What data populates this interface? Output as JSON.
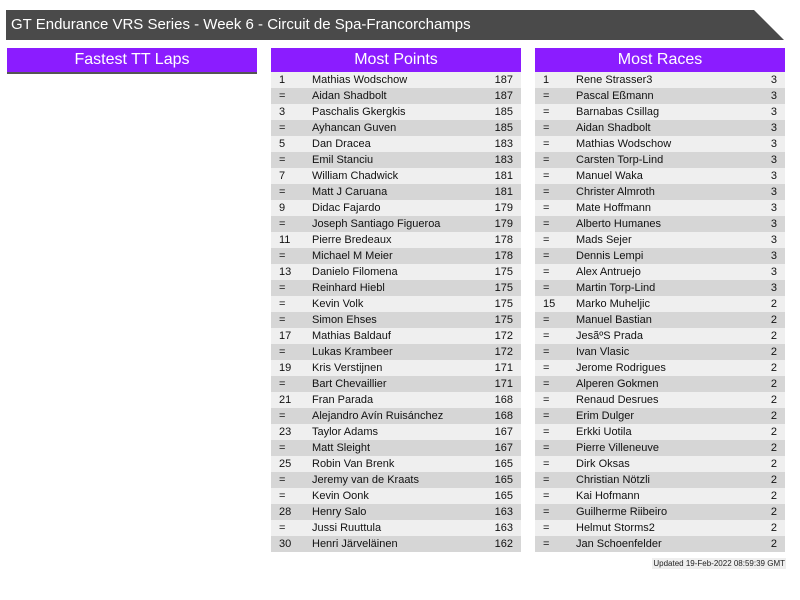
{
  "title": "GT Endurance VRS Series - Week 6 - Circuit de Spa-Francorchamps",
  "fastest_tt": {
    "header": "Fastest TT Laps",
    "rows": []
  },
  "most_points": {
    "header": "Most Points",
    "rows": [
      [
        "1",
        "Mathias Wodschow",
        "187"
      ],
      [
        "=",
        "Aidan Shadbolt",
        "187"
      ],
      [
        "3",
        "Paschalis Gkergkis",
        "185"
      ],
      [
        "=",
        "Ayhancan Guven",
        "185"
      ],
      [
        "5",
        "Dan Dracea",
        "183"
      ],
      [
        "=",
        "Emil Stanciu",
        "183"
      ],
      [
        "7",
        "William Chadwick",
        "181"
      ],
      [
        "=",
        "Matt J Caruana",
        "181"
      ],
      [
        "9",
        "Didac Fajardo",
        "179"
      ],
      [
        "=",
        "Joseph Santiago Figueroa",
        "179"
      ],
      [
        "11",
        "Pierre Bredeaux",
        "178"
      ],
      [
        "=",
        "Michael M Meier",
        "178"
      ],
      [
        "13",
        "Danielo Filomena",
        "175"
      ],
      [
        "=",
        "Reinhard Hiebl",
        "175"
      ],
      [
        "=",
        "Kevin Volk",
        "175"
      ],
      [
        "=",
        "Simon Ehses",
        "175"
      ],
      [
        "17",
        "Mathias Baldauf",
        "172"
      ],
      [
        "=",
        "Lukas Krambeer",
        "172"
      ],
      [
        "19",
        "Kris Verstijnen",
        "171"
      ],
      [
        "=",
        "Bart Chevaillier",
        "171"
      ],
      [
        "21",
        "Fran Parada",
        "168"
      ],
      [
        "=",
        "Alejandro Avín Ruisánchez",
        "168"
      ],
      [
        "23",
        "Taylor Adams",
        "167"
      ],
      [
        "=",
        "Matt Sleight",
        "167"
      ],
      [
        "25",
        "Robin Van Brenk",
        "165"
      ],
      [
        "=",
        "Jeremy van de Kraats",
        "165"
      ],
      [
        "=",
        "Kevin Oonk",
        "165"
      ],
      [
        "28",
        "Henry Salo",
        "163"
      ],
      [
        "=",
        "Jussi Ruuttula",
        "163"
      ],
      [
        "30",
        "Henri Järveläinen",
        "162"
      ]
    ]
  },
  "most_races": {
    "header": "Most Races",
    "rows": [
      [
        "1",
        "Rene Strasser3",
        "3"
      ],
      [
        "=",
        "Pascal Eßmann",
        "3"
      ],
      [
        "=",
        "Barnabas Csillag",
        "3"
      ],
      [
        "=",
        "Aidan Shadbolt",
        "3"
      ],
      [
        "=",
        "Mathias Wodschow",
        "3"
      ],
      [
        "=",
        "Carsten Torp-Lind",
        "3"
      ],
      [
        "=",
        "Manuel Waka",
        "3"
      ],
      [
        "=",
        "Christer Almroth",
        "3"
      ],
      [
        "=",
        "Mate Hoffmann",
        "3"
      ],
      [
        "=",
        "Alberto Humanes",
        "3"
      ],
      [
        "=",
        "Mads Sejer",
        "3"
      ],
      [
        "=",
        "Dennis Lempi",
        "3"
      ],
      [
        "=",
        "Alex Antruejo",
        "3"
      ],
      [
        "=",
        "Martin Torp-Lind",
        "3"
      ],
      [
        "15",
        "Marko Muheljic",
        "2"
      ],
      [
        "=",
        "Manuel Bastian",
        "2"
      ],
      [
        "=",
        "JesãºS Prada",
        "2"
      ],
      [
        "=",
        "Ivan Vlasic",
        "2"
      ],
      [
        "=",
        "Jerome Rodrigues",
        "2"
      ],
      [
        "=",
        "Alperen Gokmen",
        "2"
      ],
      [
        "=",
        "Renaud Desrues",
        "2"
      ],
      [
        "=",
        "Erim Dulger",
        "2"
      ],
      [
        "=",
        "Erkki Uotila",
        "2"
      ],
      [
        "=",
        "Pierre Villeneuve",
        "2"
      ],
      [
        "=",
        "Dirk Oksas",
        "2"
      ],
      [
        "=",
        "Christian Nötzli",
        "2"
      ],
      [
        "=",
        "Kai Hofmann",
        "2"
      ],
      [
        "=",
        "Guilherme Riibeiro",
        "2"
      ],
      [
        "=",
        "Helmut Storms2",
        "2"
      ],
      [
        "=",
        "Jan Schoenfelder",
        "2"
      ]
    ]
  },
  "updated": "Updated 19-Feb-2022 08:59:39 GMT"
}
